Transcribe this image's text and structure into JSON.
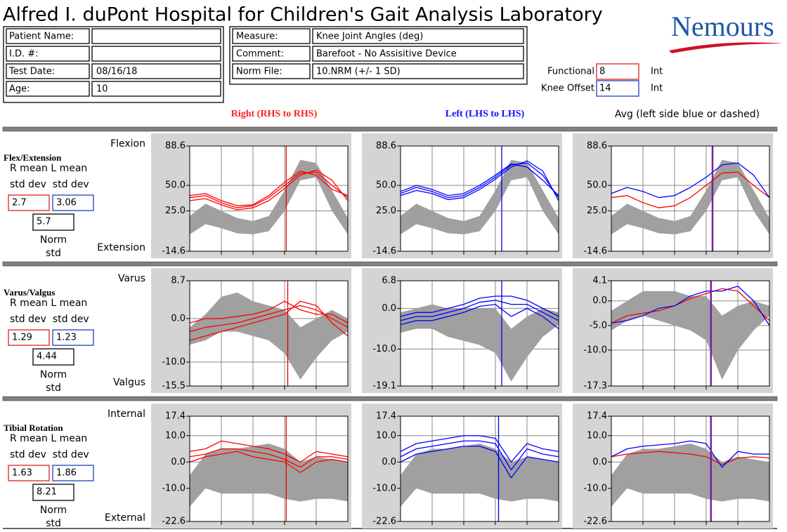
{
  "header": {
    "title": "Alfred I. duPont Hospital for Children's Gait Analysis Laboratory",
    "logo": "Nemours",
    "patient": [
      {
        "label": "Patient Name:"
      },
      {
        "label": "I.D. #:"
      },
      {
        "label": "Test Date:",
        "value": "08/16/18"
      },
      {
        "label": "Age:",
        "value": 10
      }
    ],
    "measure": [
      {
        "label": "Measure:",
        "value": "Knee Joint Angles (deg)"
      },
      {
        "label": "Comment:",
        "value": "Barefoot - No Assisitive Device"
      },
      {
        "label": "Norm File:",
        "value": "10.NRM (+/- 1 SD)"
      }
    ],
    "functional": {
      "label": "Functional",
      "value": 8,
      "unit": "Int"
    },
    "knee_offset": {
      "label": "Knee Offset",
      "value": 14,
      "unit": "Int"
    }
  },
  "columns": [
    "Right (RHS to RHS)",
    "Left (LHS to LHS)",
    "Avg (left side blue or dashed)"
  ],
  "rows": [
    {
      "title": "Flex/Extension",
      "mean_label": "R mean L mean",
      "std_label": "std dev  std dev",
      "r_std": 2.7,
      "l_std": 3.06,
      "norm_std": 5.7,
      "norm": "Norm",
      "std": "std",
      "top": "Flexion",
      "bottom": "Extension"
    },
    {
      "title": "Varus/Valgus",
      "mean_label": "R mean L mean",
      "std_label": "std dev  std dev",
      "r_std": 1.29,
      "l_std": 1.23,
      "norm_std": 4.44,
      "norm": "Norm",
      "std": "std",
      "top": "Varus",
      "bottom": "Valgus"
    },
    {
      "title": "Tibial Rotation",
      "mean_label": "R mean L mean",
      "std_label": "std dev  std dev",
      "r_std": 1.63,
      "l_std": 1.86,
      "norm_std": 8.21,
      "norm": "Norm",
      "std": "std",
      "top": "Internal",
      "bottom": "External"
    }
  ],
  "chart_data": [
    {
      "type": "line",
      "x": [
        0,
        10,
        20,
        30,
        40,
        50,
        60,
        70,
        80,
        90,
        100
      ],
      "xlim": [
        0,
        100
      ],
      "xgrid": [
        20,
        40,
        60,
        80
      ],
      "ylim": [
        -14.6,
        88.6
      ],
      "yticks": [
        -14.6,
        {
          "value": 25,
          "label": "25.0"
        },
        {
          "value": 50,
          "label": "50.0"
        },
        88.6
      ],
      "band": {
        "color": "#a0a0a0",
        "lower": [
          2,
          12,
          8,
          3,
          2,
          5,
          25,
          55,
          58,
          25,
          2
        ],
        "upper": [
          20,
          32,
          25,
          18,
          15,
          20,
          45,
          75,
          72,
          45,
          18
        ]
      },
      "series": [
        {
          "color": "#ff0000",
          "values": [
            38,
            40,
            33,
            28,
            30,
            38,
            50,
            62,
            63,
            50,
            38
          ]
        },
        {
          "color": "#ff0000",
          "values": [
            35,
            37,
            31,
            26,
            28,
            35,
            47,
            60,
            65,
            55,
            35
          ]
        },
        {
          "color": "#ff0000",
          "values": [
            40,
            42,
            35,
            30,
            31,
            40,
            53,
            64,
            60,
            46,
            40
          ]
        }
      ],
      "event": 61,
      "event_color": "#e00000"
    },
    {
      "type": "line",
      "x": [
        0,
        10,
        20,
        30,
        40,
        50,
        60,
        70,
        80,
        90,
        100
      ],
      "xlim": [
        0,
        100
      ],
      "xgrid": [
        20,
        40,
        60,
        80
      ],
      "ylim": [
        -14.6,
        88.6
      ],
      "yticks": [
        -14.6,
        {
          "value": 25,
          "label": "25.0"
        },
        {
          "value": 50,
          "label": "50.0"
        },
        88.6
      ],
      "band": {
        "color": "#a0a0a0",
        "lower": [
          2,
          12,
          8,
          3,
          2,
          5,
          25,
          55,
          58,
          25,
          2
        ],
        "upper": [
          20,
          32,
          25,
          18,
          15,
          20,
          45,
          75,
          72,
          45,
          18
        ]
      },
      "series": [
        {
          "color": "#0000ff",
          "values": [
            42,
            48,
            44,
            38,
            40,
            48,
            58,
            70,
            72,
            60,
            38
          ]
        },
        {
          "color": "#0000ff",
          "values": [
            40,
            45,
            42,
            36,
            38,
            46,
            56,
            68,
            74,
            64,
            35
          ]
        },
        {
          "color": "#0000ff",
          "values": [
            44,
            50,
            46,
            40,
            42,
            50,
            60,
            71,
            68,
            55,
            40
          ]
        }
      ],
      "event": 64,
      "event_color": "#0000e0"
    },
    {
      "type": "line",
      "x": [
        0,
        10,
        20,
        30,
        40,
        50,
        60,
        70,
        80,
        90,
        100
      ],
      "xlim": [
        0,
        100
      ],
      "xgrid": [
        20,
        40,
        60,
        80
      ],
      "ylim": [
        -14.6,
        88.6
      ],
      "yticks": [
        -14.6,
        {
          "value": 25,
          "label": "25.0"
        },
        {
          "value": 50,
          "label": "50.0"
        },
        88.6
      ],
      "band": {
        "color": "#a0a0a0",
        "lower": [
          2,
          12,
          8,
          3,
          2,
          5,
          25,
          55,
          58,
          25,
          2
        ],
        "upper": [
          20,
          32,
          25,
          18,
          15,
          20,
          45,
          75,
          72,
          45,
          18
        ]
      },
      "series": [
        {
          "color": "#ff0000",
          "values": [
            38,
            40,
            33,
            28,
            30,
            38,
            50,
            62,
            63,
            50,
            38
          ]
        },
        {
          "color": "#0000ff",
          "values": [
            42,
            48,
            44,
            38,
            40,
            48,
            58,
            70,
            72,
            60,
            38
          ]
        }
      ],
      "event": 64,
      "event_color": "#7a1fa0"
    },
    {
      "type": "line",
      "x": [
        0,
        10,
        20,
        30,
        40,
        50,
        60,
        70,
        80,
        90,
        100
      ],
      "xlim": [
        0,
        100
      ],
      "xgrid": [
        20,
        40,
        60,
        80
      ],
      "ylim": [
        -15.5,
        8.7
      ],
      "yticks": [
        -15.5,
        {
          "value": -10,
          "label": "-10.0"
        },
        {
          "value": 0,
          "label": "0.0"
        },
        8.7
      ],
      "band": {
        "color": "#a0a0a0",
        "lower": [
          -6,
          -5,
          -3,
          -3,
          -4,
          -5,
          -8,
          -14,
          -9,
          -5,
          -3
        ],
        "upper": [
          -2,
          1,
          5,
          6,
          4,
          3,
          2,
          -2,
          0,
          2,
          0
        ]
      },
      "series": [
        {
          "color": "#ff0000",
          "values": [
            -3,
            -2,
            -1.5,
            -1,
            0,
            1,
            2,
            3,
            2,
            0,
            -2
          ]
        },
        {
          "color": "#ff0000",
          "values": [
            -5,
            -4,
            -3,
            -2,
            -1,
            0,
            1,
            4,
            3,
            -1,
            -4
          ]
        },
        {
          "color": "#ff0000",
          "values": [
            -1,
            0,
            0,
            0.5,
            1,
            2,
            4,
            2,
            1,
            1,
            -1
          ]
        }
      ],
      "event": 62,
      "event_color": "#e00000"
    },
    {
      "type": "line",
      "x": [
        0,
        10,
        20,
        30,
        40,
        50,
        60,
        70,
        80,
        90,
        100
      ],
      "xlim": [
        0,
        100
      ],
      "xgrid": [
        20,
        40,
        60,
        80
      ],
      "ylim": [
        -19.1,
        6.8
      ],
      "yticks": [
        -19.1,
        {
          "value": -10,
          "label": "-10.0"
        },
        {
          "value": 0,
          "label": "0.0"
        },
        6.8
      ],
      "band": {
        "color": "#a0a0a0",
        "lower": [
          -6,
          -5,
          -5,
          -7,
          -8,
          -9,
          -11,
          -18,
          -12,
          -7,
          -4
        ],
        "upper": [
          -1,
          0,
          1,
          0,
          0,
          0,
          0,
          -5,
          -2,
          0,
          -1
        ]
      },
      "series": [
        {
          "color": "#0000ff",
          "values": [
            -3,
            -2,
            -2,
            -1,
            0,
            1.5,
            2,
            1,
            1,
            -1,
            -3
          ]
        },
        {
          "color": "#0000ff",
          "values": [
            -4,
            -3,
            -3,
            -2,
            -1,
            0.5,
            1,
            -2,
            0,
            -2,
            -5
          ]
        },
        {
          "color": "#0000ff",
          "values": [
            -2,
            -1,
            -1,
            0,
            1,
            2.5,
            3,
            3,
            2,
            0,
            -2
          ]
        }
      ],
      "event": 64,
      "event_color": "#0000e0"
    },
    {
      "type": "line",
      "x": [
        0,
        10,
        20,
        30,
        40,
        50,
        60,
        70,
        80,
        90,
        100
      ],
      "xlim": [
        0,
        100
      ],
      "xgrid": [
        20,
        40,
        60,
        80
      ],
      "ylim": [
        -17.3,
        4.1
      ],
      "yticks": [
        -17.3,
        {
          "value": -10,
          "label": "-10.0"
        },
        {
          "value": -5,
          "label": "-5.0"
        },
        {
          "value": 0,
          "label": "0.0"
        },
        4.1
      ],
      "band": {
        "color": "#a0a0a0",
        "lower": [
          -6,
          -4,
          -3,
          -4,
          -5,
          -6,
          -8,
          -16,
          -10,
          -6,
          -3
        ],
        "upper": [
          -2,
          0,
          2,
          2,
          2,
          1,
          1,
          -3,
          -1,
          0,
          -1
        ]
      },
      "series": [
        {
          "color": "#ff0000",
          "values": [
            -4.5,
            -3,
            -2.5,
            -2,
            -1,
            0.5,
            1.5,
            2.5,
            2,
            -1,
            -4
          ]
        },
        {
          "color": "#0000ff",
          "values": [
            -4.5,
            -4,
            -3,
            -1.5,
            -1,
            1,
            2,
            2,
            3,
            0,
            -5
          ]
        }
      ],
      "event": 63,
      "event_color": "#7a1fa0"
    },
    {
      "type": "line",
      "x": [
        0,
        10,
        20,
        30,
        40,
        50,
        60,
        70,
        80,
        90,
        100
      ],
      "xlim": [
        0,
        100
      ],
      "xgrid": [
        20,
        40,
        60,
        80
      ],
      "ylim": [
        -22.6,
        17.4
      ],
      "yticks": [
        -22.6,
        {
          "value": -10,
          "label": "-10.0"
        },
        {
          "value": 0,
          "label": "0.0"
        },
        {
          "value": 10,
          "label": "10.0"
        },
        17.4
      ],
      "band": {
        "color": "#a0a0a0",
        "lower": [
          -17,
          -10,
          -12,
          -12,
          -12,
          -12,
          -14,
          -15,
          -14,
          -14,
          -15
        ],
        "upper": [
          -5,
          3,
          5,
          5,
          6,
          7,
          5,
          0,
          2,
          1,
          0
        ]
      },
      "series": [
        {
          "color": "#ff0000",
          "values": [
            2,
            3,
            5,
            5,
            4,
            3,
            1,
            -2,
            2,
            2,
            1
          ]
        },
        {
          "color": "#ff0000",
          "values": [
            0,
            2,
            3,
            4,
            2,
            1,
            0,
            -4,
            0,
            1,
            0
          ]
        },
        {
          "color": "#ff0000",
          "values": [
            4,
            5,
            8,
            7,
            6,
            5,
            3,
            0,
            4,
            3,
            2
          ]
        }
      ],
      "event": 61,
      "event_color": "#e00000"
    },
    {
      "type": "line",
      "x": [
        0,
        10,
        20,
        30,
        40,
        50,
        60,
        70,
        80,
        90,
        100
      ],
      "xlim": [
        0,
        100
      ],
      "xgrid": [
        20,
        40,
        60,
        80
      ],
      "ylim": [
        -22.6,
        17.4
      ],
      "yticks": [
        -22.6,
        {
          "value": -10,
          "label": "-10.0"
        },
        {
          "value": 0,
          "label": "0.0"
        },
        {
          "value": 10,
          "label": "10.0"
        },
        17.4
      ],
      "band": {
        "color": "#a0a0a0",
        "lower": [
          -17,
          -10,
          -12,
          -12,
          -12,
          -12,
          -14,
          -15,
          -14,
          -14,
          -15
        ],
        "upper": [
          -5,
          3,
          5,
          5,
          6,
          7,
          5,
          0,
          2,
          1,
          0
        ]
      },
      "series": [
        {
          "color": "#0000ff",
          "values": [
            2,
            5,
            6,
            7,
            8,
            8,
            7,
            -3,
            5,
            3,
            2
          ]
        },
        {
          "color": "#0000ff",
          "values": [
            0,
            3,
            4,
            5,
            6,
            6,
            4,
            -6,
            2,
            1,
            0
          ]
        },
        {
          "color": "#0000ff",
          "values": [
            4,
            7,
            8,
            9,
            10,
            10,
            9,
            0,
            7,
            5,
            4
          ]
        }
      ],
      "event": 62,
      "event_color": "#0000e0"
    },
    {
      "type": "line",
      "x": [
        0,
        10,
        20,
        30,
        40,
        50,
        60,
        70,
        80,
        90,
        100
      ],
      "xlim": [
        0,
        100
      ],
      "xgrid": [
        20,
        40,
        60,
        80
      ],
      "ylim": [
        -22.6,
        17.4
      ],
      "yticks": [
        -22.6,
        {
          "value": -10,
          "label": "-10.0"
        },
        {
          "value": 0,
          "label": "0.0"
        },
        {
          "value": 10,
          "label": "10.0"
        },
        17.4
      ],
      "band": {
        "color": "#a0a0a0",
        "lower": [
          -17,
          -10,
          -12,
          -12,
          -12,
          -12,
          -14,
          -15,
          -14,
          -14,
          -15
        ],
        "upper": [
          -5,
          3,
          5,
          5,
          6,
          7,
          5,
          0,
          2,
          1,
          0
        ]
      },
      "series": [
        {
          "color": "#ff0000",
          "values": [
            2,
            3,
            3.5,
            4,
            3.5,
            3,
            2,
            -1,
            1.5,
            2,
            1.5
          ]
        },
        {
          "color": "#0000ff",
          "values": [
            2,
            5,
            6,
            6.5,
            7,
            8,
            7,
            -2,
            4,
            3,
            3
          ]
        }
      ],
      "event": 63,
      "event_color": "#7a1fa0"
    }
  ]
}
